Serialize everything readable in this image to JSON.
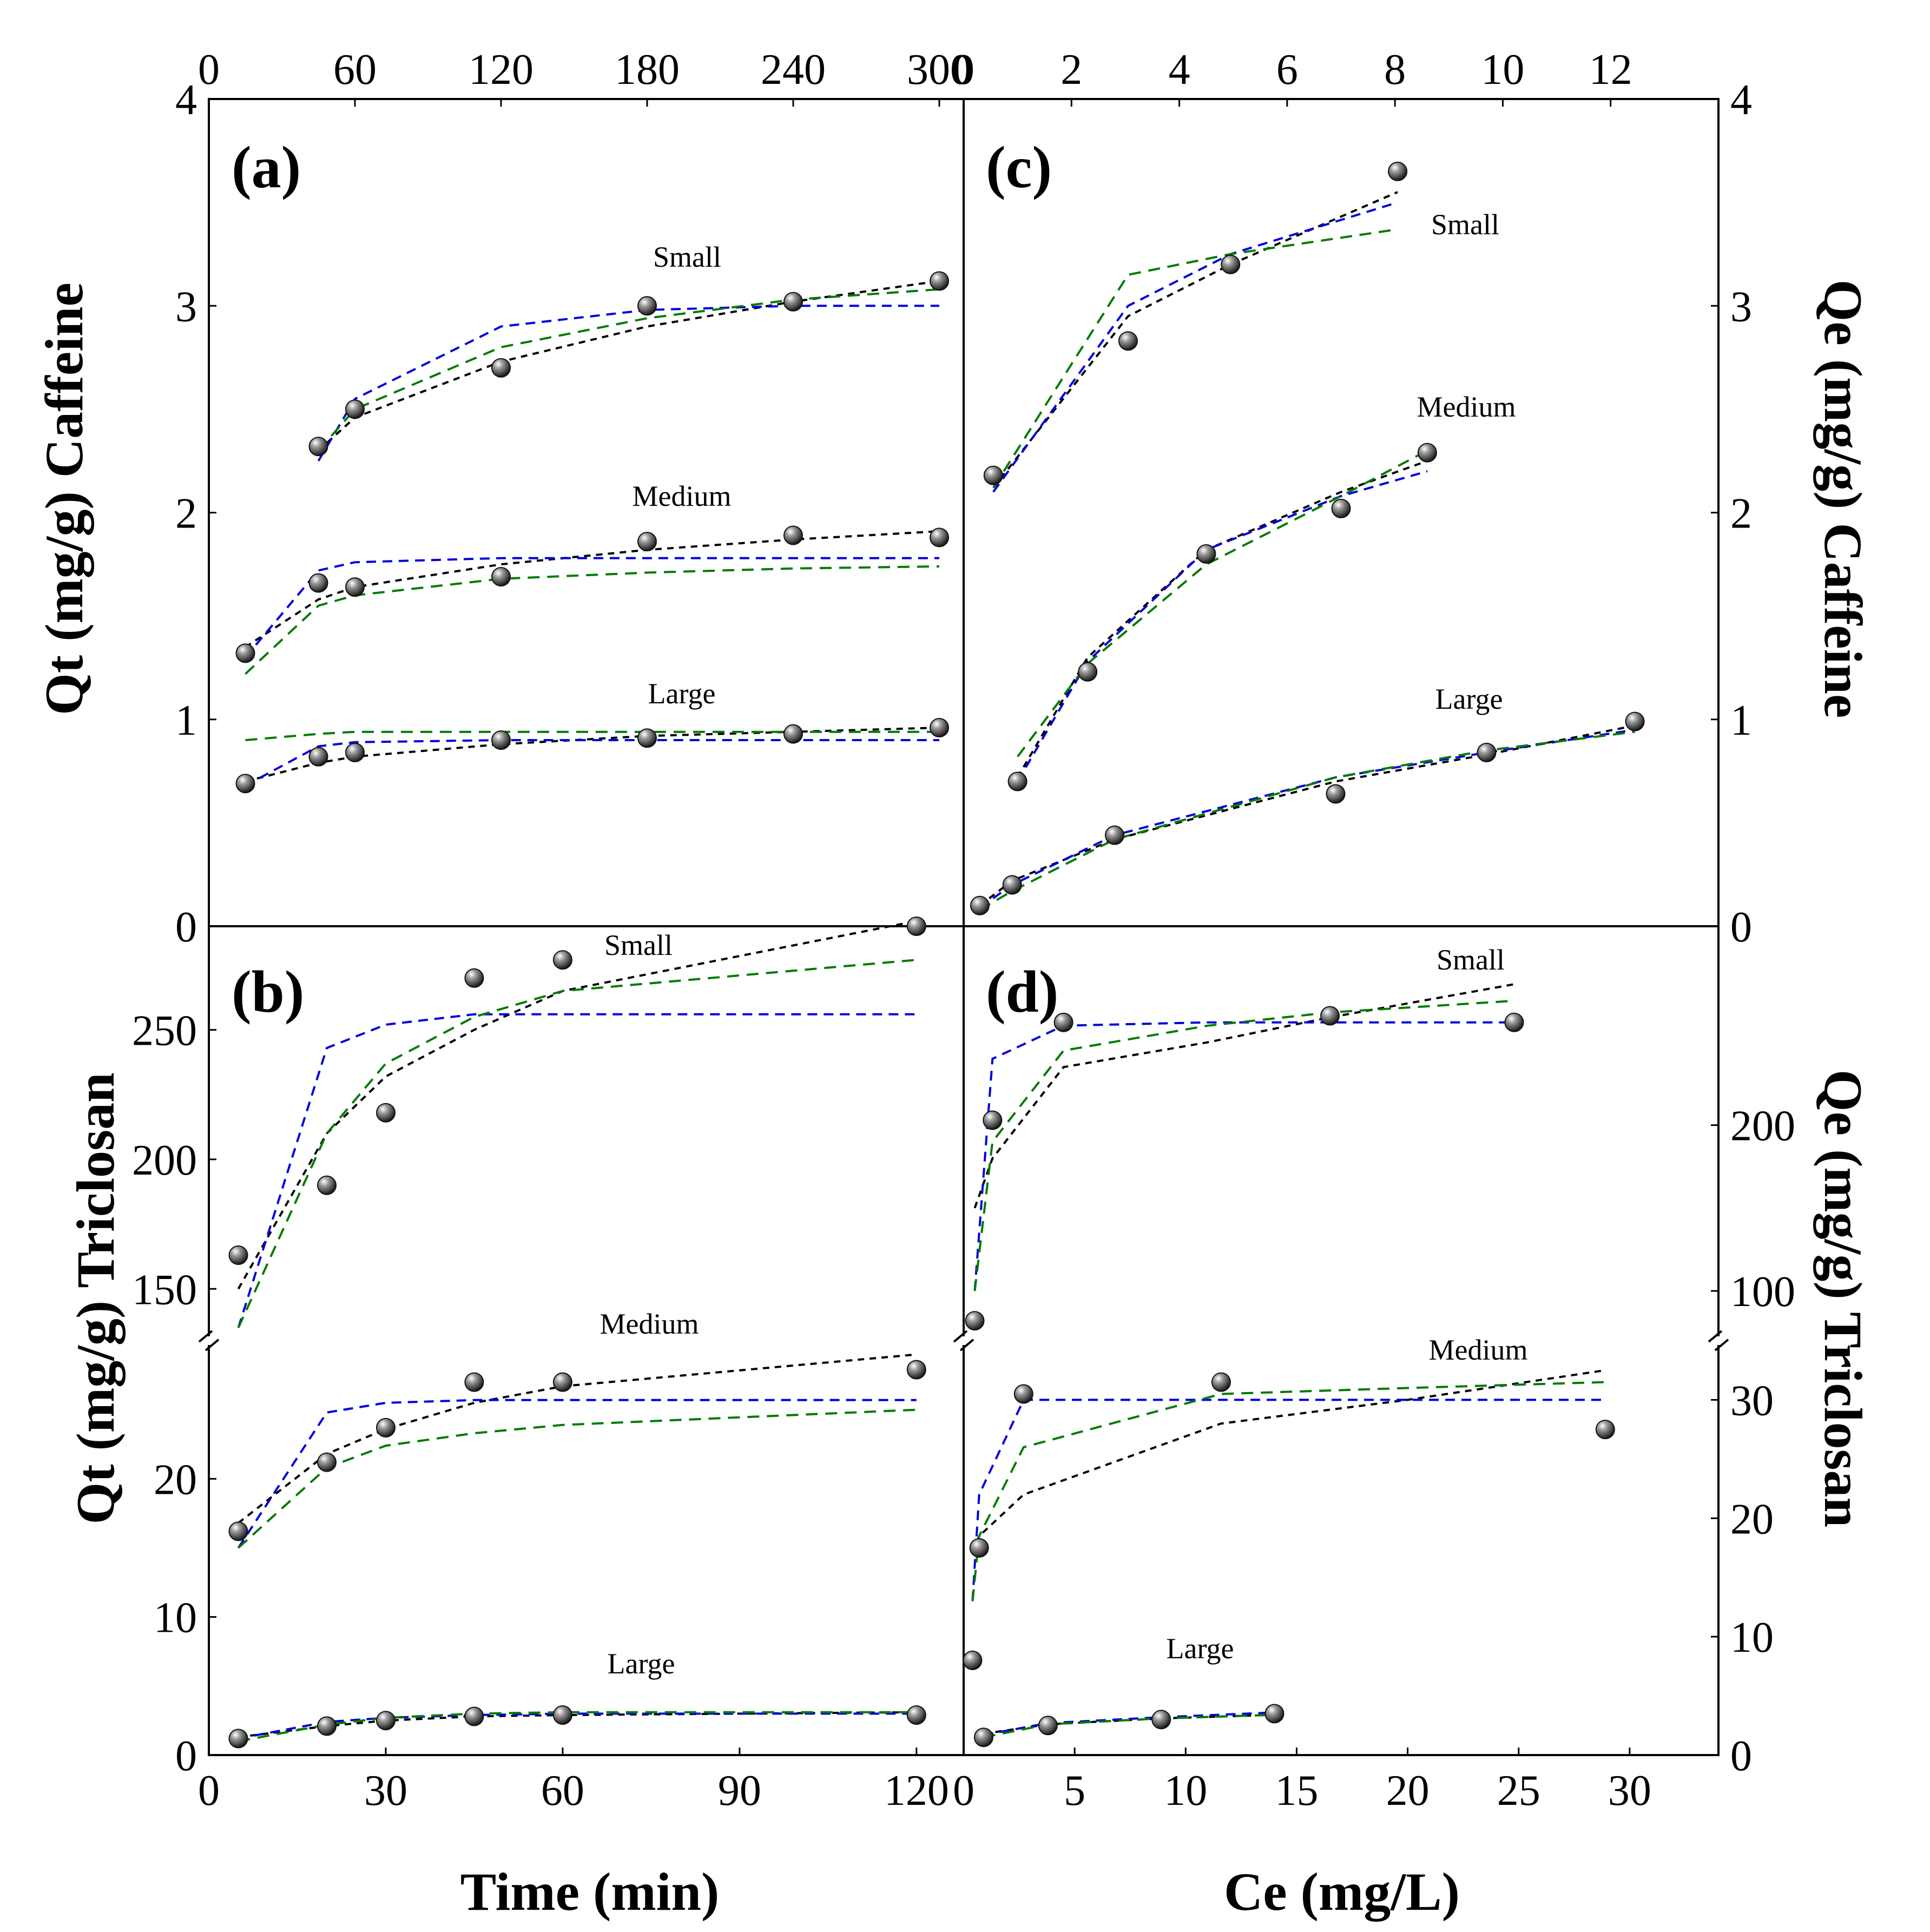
{
  "figure": {
    "x_label_left": "Time (min)",
    "x_label_right": "Ce (mg/L)",
    "y_label_left_top": "Qt (mg/g) Caffeine",
    "y_label_left_bottom": "Qt (mg/g) Triclosan",
    "y_label_right_top": "Qe (mg/g) Caffeine",
    "y_label_right_bottom": "Qe (mg/g) Triclosan",
    "panel_labels": [
      "(a)",
      "(b)",
      "(c)",
      "(d)"
    ],
    "series_names": [
      "Small",
      "Medium",
      "Large"
    ]
  },
  "colors": {
    "black_fit": "#000000",
    "blue_fit": "#0000dd",
    "green_fit": "#007a00",
    "marker": "#4a4a4a",
    "axis": "#000000"
  },
  "chart_data": [
    {
      "panel": "(a)",
      "type": "scatter",
      "title": "",
      "xlabel": "Time (min)",
      "ylabel": "Qt (mg/g) Caffeine",
      "xlim": [
        0,
        310
      ],
      "ylim": [
        0,
        4
      ],
      "xticks": [
        "0",
        "60",
        "120",
        "180",
        "240",
        "300"
      ],
      "yticks": [
        "0",
        "1",
        "2",
        "3",
        "4"
      ],
      "series": [
        {
          "name": "Small",
          "x": [
            45,
            60,
            120,
            180,
            240,
            300
          ],
          "y": [
            2.32,
            2.5,
            2.7,
            3.0,
            3.02,
            3.12
          ]
        },
        {
          "name": "Medium",
          "x": [
            15,
            45,
            60,
            120,
            180,
            240,
            300
          ],
          "y": [
            1.32,
            1.66,
            1.64,
            1.69,
            1.86,
            1.89,
            1.88
          ]
        },
        {
          "name": "Large",
          "x": [
            15,
            45,
            60,
            120,
            180,
            240,
            300
          ],
          "y": [
            0.69,
            0.82,
            0.84,
            0.9,
            0.91,
            0.93,
            0.96
          ]
        }
      ],
      "fits": [
        {
          "model": "black",
          "series": "Small",
          "x": [
            45,
            60,
            120,
            180,
            240,
            300
          ],
          "y": [
            2.3,
            2.46,
            2.73,
            2.9,
            3.02,
            3.12
          ]
        },
        {
          "model": "blue",
          "series": "Small",
          "x": [
            45,
            60,
            120,
            180,
            240,
            300
          ],
          "y": [
            2.25,
            2.55,
            2.9,
            2.98,
            3.0,
            3.0
          ]
        },
        {
          "model": "green",
          "series": "Small",
          "x": [
            45,
            60,
            120,
            180,
            240,
            300
          ],
          "y": [
            2.3,
            2.5,
            2.8,
            2.94,
            3.03,
            3.08
          ]
        },
        {
          "model": "black",
          "series": "Medium",
          "x": [
            15,
            45,
            60,
            120,
            180,
            240,
            300
          ],
          "y": [
            1.35,
            1.58,
            1.64,
            1.75,
            1.82,
            1.87,
            1.91
          ]
        },
        {
          "model": "blue",
          "series": "Medium",
          "x": [
            15,
            45,
            60,
            120,
            180,
            240,
            300
          ],
          "y": [
            1.3,
            1.72,
            1.76,
            1.78,
            1.78,
            1.78,
            1.78
          ]
        },
        {
          "model": "green",
          "series": "Medium",
          "x": [
            15,
            45,
            60,
            120,
            180,
            240,
            300
          ],
          "y": [
            1.22,
            1.55,
            1.6,
            1.68,
            1.71,
            1.73,
            1.74
          ]
        },
        {
          "model": "black",
          "series": "Large",
          "x": [
            15,
            45,
            60,
            120,
            180,
            240,
            300
          ],
          "y": [
            0.7,
            0.79,
            0.82,
            0.88,
            0.92,
            0.94,
            0.96
          ]
        },
        {
          "model": "blue",
          "series": "Large",
          "x": [
            15,
            45,
            60,
            120,
            180,
            240,
            300
          ],
          "y": [
            0.68,
            0.87,
            0.89,
            0.9,
            0.9,
            0.9,
            0.9
          ]
        },
        {
          "model": "green",
          "series": "Large",
          "x": [
            15,
            45,
            60,
            120,
            180,
            240,
            300
          ],
          "y": [
            0.9,
            0.93,
            0.94,
            0.94,
            0.94,
            0.94,
            0.94
          ]
        }
      ]
    },
    {
      "panel": "(b)",
      "type": "scatter",
      "title": "",
      "xlabel": "Time (min)",
      "ylabel": "Qt (mg/g) Triclosan",
      "xlim": [
        0,
        128
      ],
      "ylim_lower": [
        0,
        30
      ],
      "ylim_upper": [
        130,
        290
      ],
      "axis_break": true,
      "xticks": [
        "0",
        "30",
        "60",
        "90",
        "120"
      ],
      "yticks_lower": [
        "0",
        "10",
        "20"
      ],
      "yticks_upper": [
        "150",
        "200",
        "250"
      ],
      "series": [
        {
          "name": "Small",
          "x": [
            5,
            20,
            30,
            45,
            60,
            120
          ],
          "y": [
            163,
            190,
            218,
            270,
            277,
            290
          ]
        },
        {
          "name": "Medium",
          "x": [
            5,
            20,
            30,
            45,
            60,
            120
          ],
          "y": [
            16.2,
            21.2,
            23.7,
            27.0,
            27.0,
            27.9
          ]
        },
        {
          "name": "Large",
          "x": [
            5,
            20,
            30,
            45,
            60,
            120
          ],
          "y": [
            1.2,
            2.1,
            2.5,
            2.8,
            2.9,
            2.9
          ]
        }
      ],
      "fits": [
        {
          "model": "black",
          "series": "Small",
          "x": [
            5,
            20,
            30,
            45,
            60,
            120
          ],
          "y": [
            150,
            210,
            232,
            250,
            265,
            292
          ]
        },
        {
          "model": "blue",
          "series": "Small",
          "x": [
            5,
            20,
            30,
            45,
            60,
            120
          ],
          "y": [
            135,
            243,
            252,
            256,
            256,
            256
          ]
        },
        {
          "model": "green",
          "series": "Small",
          "x": [
            5,
            20,
            30,
            45,
            60,
            120
          ],
          "y": [
            135,
            210,
            237,
            255,
            265,
            277
          ]
        },
        {
          "model": "black",
          "series": "Medium",
          "x": [
            5,
            20,
            30,
            45,
            60,
            120
          ],
          "y": [
            16.8,
            21.8,
            23.6,
            25.5,
            26.7,
            29.0
          ]
        },
        {
          "model": "blue",
          "series": "Medium",
          "x": [
            5,
            20,
            30,
            45,
            60,
            120
          ],
          "y": [
            15.0,
            24.8,
            25.5,
            25.7,
            25.7,
            25.7
          ]
        },
        {
          "model": "green",
          "series": "Medium",
          "x": [
            5,
            20,
            30,
            45,
            60,
            120
          ],
          "y": [
            15.0,
            20.8,
            22.4,
            23.3,
            23.9,
            25.0
          ]
        },
        {
          "model": "black",
          "series": "Large",
          "x": [
            5,
            20,
            30,
            45,
            60,
            120
          ],
          "y": [
            1.3,
            2.1,
            2.5,
            2.8,
            2.9,
            3.1
          ]
        },
        {
          "model": "blue",
          "series": "Large",
          "x": [
            5,
            20,
            30,
            45,
            60,
            120
          ],
          "y": [
            1.2,
            2.4,
            2.7,
            2.9,
            3.0,
            3.0
          ]
        },
        {
          "model": "green",
          "series": "Large",
          "x": [
            5,
            20,
            30,
            45,
            60,
            120
          ],
          "y": [
            1.0,
            2.2,
            2.7,
            3.0,
            3.1,
            3.1
          ]
        }
      ]
    },
    {
      "panel": "(c)",
      "type": "scatter",
      "title": "",
      "xlabel": "Ce (mg/L)",
      "ylabel": "Qe (mg/g) Caffeine",
      "xlim": [
        0,
        14
      ],
      "ylim": [
        0,
        4
      ],
      "xticks": [
        "0",
        "2",
        "4",
        "6",
        "8",
        "10",
        "12"
      ],
      "yticks": [
        "0",
        "1",
        "2",
        "3",
        "4"
      ],
      "series": [
        {
          "name": "Small",
          "x": [
            0.55,
            3.05,
            4.95,
            8.05
          ],
          "y": [
            2.18,
            2.83,
            3.2,
            3.65
          ]
        },
        {
          "name": "Medium",
          "x": [
            1.0,
            2.3,
            4.5,
            7.0,
            8.6
          ],
          "y": [
            0.7,
            1.23,
            1.8,
            2.02,
            2.29
          ]
        },
        {
          "name": "Large",
          "x": [
            0.3,
            0.9,
            2.8,
            6.9,
            9.7,
            12.45
          ],
          "y": [
            0.1,
            0.2,
            0.44,
            0.64,
            0.84,
            0.99
          ]
        }
      ],
      "fits": [
        {
          "model": "black",
          "series": "Small",
          "x": [
            0.55,
            3.05,
            4.95,
            8.05
          ],
          "y": [
            2.12,
            2.95,
            3.2,
            3.55
          ]
        },
        {
          "model": "blue",
          "series": "Small",
          "x": [
            0.55,
            3.05,
            4.95,
            8.05
          ],
          "y": [
            2.1,
            3.0,
            3.25,
            3.5
          ]
        },
        {
          "model": "green",
          "series": "Small",
          "x": [
            0.55,
            3.05,
            4.95,
            8.05
          ],
          "y": [
            2.12,
            3.15,
            3.25,
            3.37
          ]
        },
        {
          "model": "black",
          "series": "Medium",
          "x": [
            1.0,
            2.3,
            4.5,
            7.0,
            8.6
          ],
          "y": [
            0.72,
            1.3,
            1.82,
            2.1,
            2.25
          ]
        },
        {
          "model": "blue",
          "series": "Medium",
          "x": [
            1.0,
            2.3,
            4.5,
            7.0,
            8.6
          ],
          "y": [
            0.7,
            1.28,
            1.82,
            2.08,
            2.2
          ]
        },
        {
          "model": "green",
          "series": "Medium",
          "x": [
            1.0,
            2.3,
            4.5,
            7.0,
            8.6
          ],
          "y": [
            0.82,
            1.27,
            1.75,
            2.08,
            2.3
          ]
        },
        {
          "model": "black",
          "series": "Large",
          "x": [
            0.3,
            0.9,
            2.8,
            6.9,
            9.7,
            12.45
          ],
          "y": [
            0.1,
            0.22,
            0.42,
            0.7,
            0.83,
            0.97
          ]
        },
        {
          "model": "blue",
          "series": "Large",
          "x": [
            0.3,
            0.9,
            2.8,
            6.9,
            9.7,
            12.45
          ],
          "y": [
            0.09,
            0.2,
            0.44,
            0.72,
            0.84,
            0.95
          ]
        },
        {
          "model": "green",
          "series": "Large",
          "x": [
            0.3,
            0.9,
            2.8,
            6.9,
            9.7,
            12.45
          ],
          "y": [
            0.08,
            0.17,
            0.42,
            0.72,
            0.85,
            0.94
          ]
        }
      ]
    },
    {
      "panel": "(d)",
      "type": "scatter",
      "title": "",
      "xlabel": "Ce (mg/L)",
      "ylabel": "Qe (mg/g) Triclosan",
      "xlim": [
        0,
        34
      ],
      "ylim_lower": [
        0,
        35
      ],
      "ylim_upper": [
        70,
        320
      ],
      "axis_break": true,
      "xticks": [
        "0",
        "5",
        "10",
        "15",
        "20",
        "25",
        "30"
      ],
      "yticks_lower": [
        "0",
        "10",
        "20",
        "30"
      ],
      "yticks_upper": [
        "100",
        "200"
      ],
      "series": [
        {
          "name": "Small",
          "x": [
            0.5,
            1.3,
            4.5,
            16.5,
            24.8
          ],
          "y": [
            82,
            203,
            262,
            266,
            262
          ]
        },
        {
          "name": "Medium",
          "x": [
            0.4,
            0.7,
            2.7,
            11.6,
            28.9
          ],
          "y": [
            8.0,
            17.5,
            30.5,
            31.5,
            27.5
          ]
        },
        {
          "name": "Large",
          "x": [
            0.9,
            3.8,
            8.9,
            14.0
          ],
          "y": [
            1.5,
            2.5,
            3.0,
            3.5
          ]
        }
      ],
      "fits": [
        {
          "model": "black",
          "series": "Small",
          "x": [
            0.5,
            1.3,
            4.5,
            11.0,
            16.5,
            24.8
          ],
          "y": [
            150,
            180,
            235,
            250,
            265,
            285
          ]
        },
        {
          "model": "blue",
          "series": "Small",
          "x": [
            0.5,
            1.3,
            4.5,
            11.0,
            16.5,
            24.8
          ],
          "y": [
            100,
            240,
            260,
            262,
            262,
            262
          ]
        },
        {
          "model": "green",
          "series": "Small",
          "x": [
            0.5,
            1.3,
            4.5,
            11.0,
            16.5,
            24.8
          ],
          "y": [
            100,
            190,
            245,
            260,
            268,
            275
          ]
        },
        {
          "model": "black",
          "series": "Medium",
          "x": [
            0.4,
            0.7,
            2.7,
            11.6,
            20.0,
            28.9
          ],
          "y": [
            17.0,
            18.5,
            22.0,
            28.0,
            30.0,
            32.5
          ]
        },
        {
          "model": "blue",
          "series": "Medium",
          "x": [
            0.4,
            0.7,
            2.7,
            11.6,
            20.0,
            28.9
          ],
          "y": [
            13.0,
            22.0,
            30.0,
            30.0,
            30.0,
            30.0
          ]
        },
        {
          "model": "green",
          "series": "Medium",
          "x": [
            0.4,
            0.7,
            2.7,
            11.6,
            20.0,
            28.9
          ],
          "y": [
            13.0,
            18.5,
            26.0,
            30.5,
            31.0,
            31.5
          ]
        },
        {
          "model": "black",
          "series": "Large",
          "x": [
            0.9,
            3.8,
            8.9,
            14.0
          ],
          "y": [
            1.8,
            2.6,
            3.1,
            3.4
          ]
        },
        {
          "model": "blue",
          "series": "Large",
          "x": [
            0.9,
            3.8,
            8.9,
            14.0
          ],
          "y": [
            1.7,
            2.7,
            3.2,
            3.6
          ]
        },
        {
          "model": "green",
          "series": "Large",
          "x": [
            0.9,
            3.8,
            8.9,
            14.0
          ],
          "y": [
            1.5,
            2.6,
            3.1,
            3.4
          ]
        }
      ]
    }
  ]
}
